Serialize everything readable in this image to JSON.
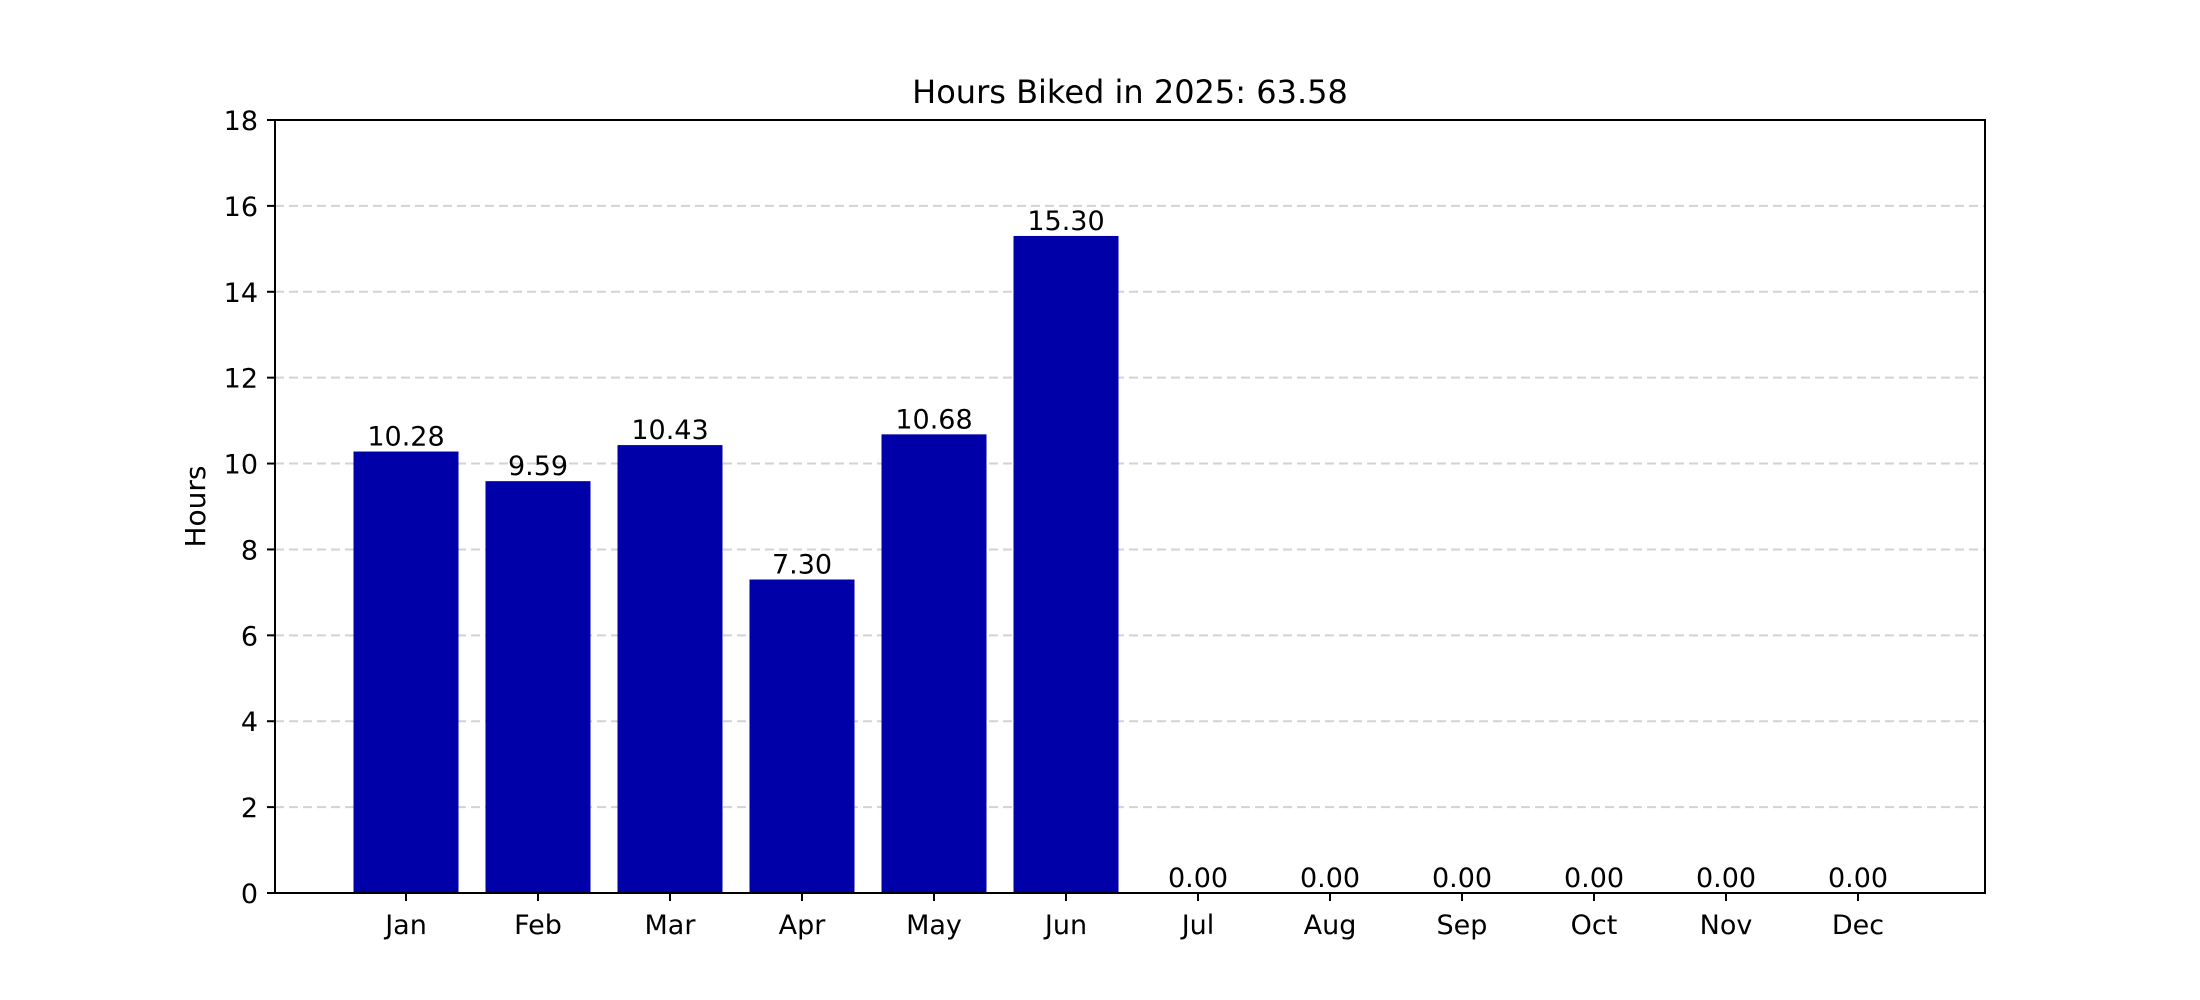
{
  "chart_data": {
    "type": "bar",
    "title": "Hours Biked in 2025: 63.58",
    "xlabel": "",
    "ylabel": "Hours",
    "categories": [
      "Jan",
      "Feb",
      "Mar",
      "Apr",
      "May",
      "Jun",
      "Jul",
      "Aug",
      "Sep",
      "Oct",
      "Nov",
      "Dec"
    ],
    "values": [
      10.28,
      9.59,
      10.43,
      7.3,
      10.68,
      15.3,
      0.0,
      0.0,
      0.0,
      0.0,
      0.0,
      0.0
    ],
    "value_labels": [
      "10.28",
      "9.59",
      "10.43",
      "7.30",
      "10.68",
      "15.30",
      "0.00",
      "0.00",
      "0.00",
      "0.00",
      "0.00",
      "0.00"
    ],
    "ylim": [
      0,
      18
    ],
    "y_ticks": [
      0,
      2,
      4,
      6,
      8,
      10,
      12,
      14,
      16,
      18
    ],
    "grid": "y dashed",
    "bar_color": "#0000A8",
    "grid_color": "#D3D3D3",
    "axis_color": "#000000"
  }
}
